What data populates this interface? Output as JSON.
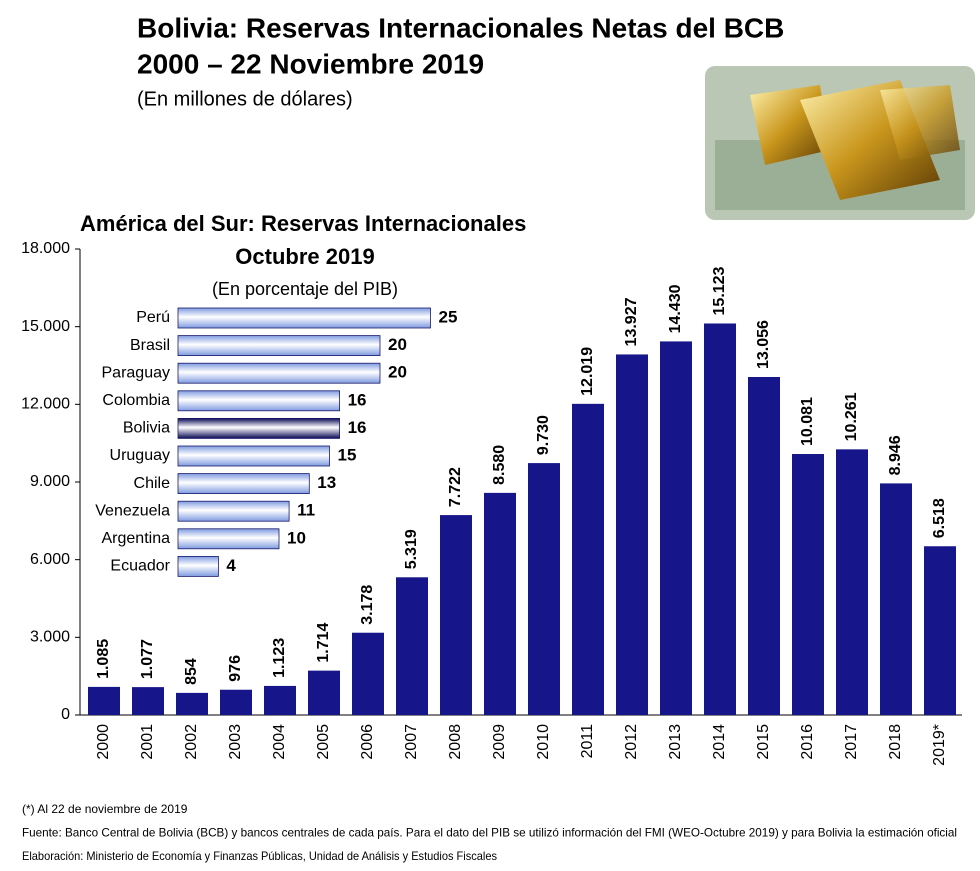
{
  "chart_data": [
    {
      "type": "bar",
      "title": "Bolivia: Reservas Internacionales Netas del BCB",
      "title_line2": "2000 – 22 Noviembre 2019",
      "subtitle": "(En millones de dólares)",
      "categories": [
        "2000",
        "2001",
        "2002",
        "2003",
        "2004",
        "2005",
        "2006",
        "2007",
        "2008",
        "2009",
        "2010",
        "2011",
        "2012",
        "2013",
        "2014",
        "2015",
        "2016",
        "2017",
        "2018",
        "2019*"
      ],
      "values": [
        1085,
        1077,
        854,
        976,
        1123,
        1714,
        3178,
        5319,
        7722,
        8580,
        9730,
        12019,
        13927,
        14430,
        15123,
        13056,
        10081,
        10261,
        8946,
        6518
      ],
      "value_labels": [
        "1.085",
        "1.077",
        "854",
        "976",
        "1.123",
        "1.714",
        "3.178",
        "5.319",
        "7.722",
        "8.580",
        "9.730",
        "12.019",
        "13.927",
        "14.430",
        "15.123",
        "13.056",
        "10.081",
        "10.261",
        "8.946",
        "6.518"
      ],
      "color": "#16168a",
      "ylim": [
        0,
        18000
      ],
      "yticks": [
        0,
        {
          "value": 3000,
          "label": "3.000"
        },
        {
          "value": 6000,
          "label": "6.000"
        },
        {
          "value": 9000,
          "label": "9.000"
        },
        {
          "value": 12000,
          "label": "12.000"
        },
        {
          "value": 15000,
          "label": "15.000"
        },
        {
          "value": 18000,
          "label": "18.000"
        }
      ],
      "notes": [
        "(*) Al 22 de noviembre de 2019",
        "Fuente: Banco Central de Bolivia (BCB) y bancos centrales de cada país. Para el dato del PIB se utilizó información del FMI (WEO-Octubre 2019) y para Bolivia la estimación oficial",
        "Elaboración: Ministerio de Economía y Finanzas Públicas, Unidad de Análisis y Estudios Fiscales"
      ]
    },
    {
      "type": "hbar",
      "title": "América del Sur: Reservas Internacionales",
      "title_line2": "Octubre 2019",
      "subtitle": "(En porcentaje del PIB)",
      "categories": [
        "Perú",
        "Brasil",
        "Paraguay",
        "Colombia",
        "Bolivia",
        "Uruguay",
        "Chile",
        "Venezuela",
        "Argentina",
        "Ecuador"
      ],
      "values": [
        25,
        20,
        20,
        16,
        16,
        15,
        13,
        11,
        10,
        4
      ],
      "colors": [
        "#7f9be0",
        "#7f9be0",
        "#7f9be0",
        "#7f9be0",
        "#0a0a55",
        "#7f9be0",
        "#7f9be0",
        "#7f9be0",
        "#7f9be0",
        "#7f9be0"
      ]
    }
  ]
}
